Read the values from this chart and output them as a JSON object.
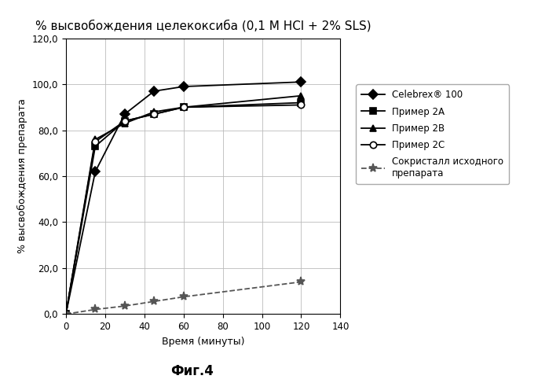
{
  "title": "% высвобождения целекоксиба (0,1 М HCl + 2% SLS)",
  "xlabel": "Время (минуты)",
  "ylabel": "% высвобождения препарата",
  "figcaption": "Фиг.4",
  "xlim": [
    0,
    140
  ],
  "ylim": [
    0,
    120
  ],
  "xticks": [
    0,
    20,
    40,
    60,
    80,
    100,
    120,
    140
  ],
  "yticks": [
    0.0,
    20.0,
    40.0,
    60.0,
    80.0,
    100.0,
    120.0
  ],
  "ytick_labels": [
    "0,0",
    "20,0",
    "40,0",
    "60,0",
    "80,0",
    "100,0",
    "120,0"
  ],
  "series": [
    {
      "label": "Celebrex® 100",
      "color": "#000000",
      "linestyle": "-",
      "marker": "D",
      "markersize": 6,
      "linewidth": 1.3,
      "markerfacecolor": "#000000",
      "x": [
        0,
        15,
        30,
        45,
        60,
        120
      ],
      "y": [
        0,
        62,
        87,
        97,
        99,
        101
      ]
    },
    {
      "label": "Пример 2A",
      "color": "#000000",
      "linestyle": "-",
      "marker": "s",
      "markersize": 6,
      "linewidth": 1.3,
      "markerfacecolor": "#000000",
      "x": [
        0,
        15,
        30,
        45,
        60,
        120
      ],
      "y": [
        0,
        73,
        84,
        87,
        90,
        92
      ]
    },
    {
      "label": "Пример 2B",
      "color": "#000000",
      "linestyle": "-",
      "marker": "^",
      "markersize": 6,
      "linewidth": 1.3,
      "markerfacecolor": "#000000",
      "x": [
        0,
        15,
        30,
        45,
        60,
        120
      ],
      "y": [
        0,
        76,
        83,
        88,
        90,
        95
      ]
    },
    {
      "label": "Пример 2C",
      "color": "#000000",
      "linestyle": "-",
      "marker": "o",
      "markersize": 6,
      "linewidth": 1.3,
      "markerfacecolor": "#ffffff",
      "x": [
        0,
        15,
        30,
        45,
        60,
        120
      ],
      "y": [
        0,
        75,
        84,
        87,
        90,
        91
      ]
    },
    {
      "label": "Сокристалл исходного\nпрепарата",
      "color": "#555555",
      "linestyle": "--",
      "marker": "*",
      "markersize": 8,
      "linewidth": 1.3,
      "markerfacecolor": "#555555",
      "x": [
        0,
        15,
        30,
        45,
        60,
        120
      ],
      "y": [
        0,
        2,
        3.5,
        5.5,
        7.5,
        14
      ]
    }
  ],
  "background_color": "#ffffff",
  "plot_background_color": "#ffffff",
  "grid_color": "#bbbbbb",
  "title_fontsize": 11,
  "axis_label_fontsize": 9,
  "tick_fontsize": 8.5,
  "legend_fontsize": 8.5,
  "caption_fontsize": 12
}
